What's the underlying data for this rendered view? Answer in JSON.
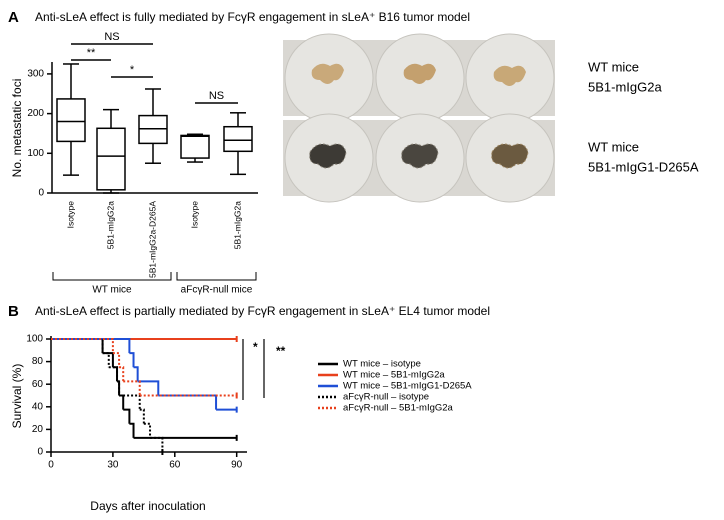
{
  "panels": [
    "A",
    "B"
  ],
  "chart_data": [
    {
      "type": "box",
      "title": "Anti-sLeA effect is fully mediated by FcγR engagement in sLeA⁺ B16 tumor model",
      "y_label": "No. metastatic foci",
      "ylim": [
        0,
        330
      ],
      "yticks": [
        0,
        100,
        200,
        300
      ],
      "color": "#000000",
      "groups": [
        {
          "name": "WT mice",
          "categories": [
            "Isotype",
            "5B1-mIgG2a",
            "5B1-mIgG2a-D265A"
          ],
          "min": [
            45,
            0,
            75
          ],
          "q1": [
            130,
            8,
            125
          ],
          "median": [
            180,
            93,
            162
          ],
          "q3": [
            237,
            163,
            195
          ],
          "max": [
            325,
            210,
            262
          ]
        },
        {
          "name": "aFcγR-null mice",
          "categories": [
            "Isotype",
            "5B1-mIgG2a"
          ],
          "min": [
            78,
            47
          ],
          "q1": [
            88,
            105
          ],
          "median": [
            143,
            133
          ],
          "q3": [
            145,
            167
          ],
          "max": [
            148,
            202
          ]
        }
      ],
      "significance": [
        "**",
        "NS",
        "*",
        "NS"
      ],
      "images": [
        {
          "lines": [
            "WT mice",
            "5B1-mIgG2a"
          ]
        },
        {
          "lines": [
            "WT mice",
            "5B1-mIgG1-D265A"
          ]
        }
      ]
    },
    {
      "type": "survival",
      "title": "Anti-sLeA effect is partially mediated by FcγR engagement in sLeA⁺ EL4 tumor model",
      "x_label": "Days after inoculation",
      "y_label": "Survival (%)",
      "xlim": [
        0,
        95
      ],
      "xticks": [
        0,
        30,
        60,
        90
      ],
      "ylim": [
        0,
        100
      ],
      "yticks": [
        0,
        20,
        40,
        60,
        80,
        100
      ],
      "series": [
        {
          "name": "WT mice – isotype",
          "color": "#000000",
          "linestyle": "solid",
          "x": [
            0,
            25,
            30,
            32,
            33,
            35,
            38,
            40,
            90
          ],
          "values": [
            100,
            87.5,
            75,
            62.5,
            50,
            37.5,
            25,
            12.5,
            12.5
          ]
        },
        {
          "name": "WT mice – 5B1-mIgG2a",
          "color": "#e8401c",
          "linestyle": "solid",
          "x": [
            0,
            90
          ],
          "values": [
            100,
            100
          ]
        },
        {
          "name": "WT mice – 5B1-mIgG1-D265A",
          "color": "#1f4fd6",
          "linestyle": "solid",
          "x": [
            0,
            38,
            40,
            42,
            52,
            80,
            90
          ],
          "values": [
            100,
            87.5,
            75,
            62.5,
            50,
            37.5,
            37.5
          ]
        },
        {
          "name": "aFcγR-null – isotype",
          "color": "#000000",
          "linestyle": "dotted",
          "x": [
            0,
            25,
            28,
            32,
            33,
            43,
            45,
            48,
            54
          ],
          "values": [
            100,
            87.5,
            75,
            62.5,
            50,
            37.5,
            25,
            12.5,
            0
          ]
        },
        {
          "name": "aFcγR-null – 5B1-mIgG2a",
          "color": "#e8401c",
          "linestyle": "dotted",
          "x": [
            0,
            30,
            33,
            35,
            43,
            90
          ],
          "values": [
            100,
            87.5,
            75,
            62.5,
            50,
            50
          ]
        }
      ],
      "significance": [
        "*",
        "**"
      ]
    }
  ]
}
